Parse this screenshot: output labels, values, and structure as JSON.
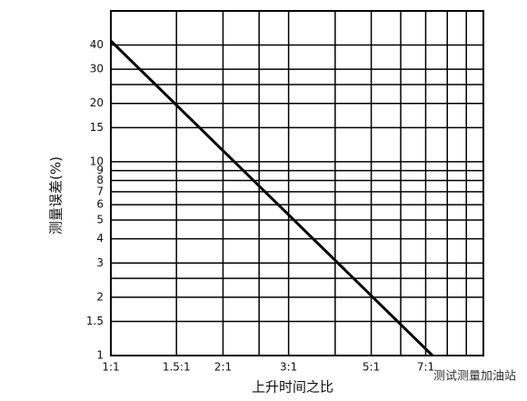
{
  "chart_data": {
    "type": "line",
    "y_axis_label": "测量误差(%)",
    "x_axis_label": "上升时间之比",
    "watermark": "测试测量加油站",
    "x": [
      1,
      7.3
    ],
    "series": [
      {
        "color": "#000000",
        "values": [
          42,
          1
        ]
      }
    ],
    "xlim": [
      1,
      10
    ],
    "ylim": [
      1,
      60
    ],
    "x_log": true,
    "y_log": true,
    "grid": true,
    "xticks": [
      {
        "value": 1,
        "label": "1:1"
      },
      {
        "value": 1.5,
        "label": "1.5:1"
      },
      {
        "value": 2,
        "label": "2:1"
      },
      {
        "value": 3,
        "label": "3:1"
      },
      {
        "value": 5,
        "label": "5:1"
      },
      {
        "value": 7,
        "label": "7:1"
      }
    ],
    "x_minor_gridlines": [
      2.5,
      4,
      6,
      8,
      9,
      10
    ],
    "yticks": [
      1,
      1.5,
      2,
      3,
      4,
      5,
      6,
      7,
      8,
      9,
      10,
      15,
      20,
      30,
      40
    ],
    "y_minor_gridlines": [
      2.5,
      25
    ]
  }
}
